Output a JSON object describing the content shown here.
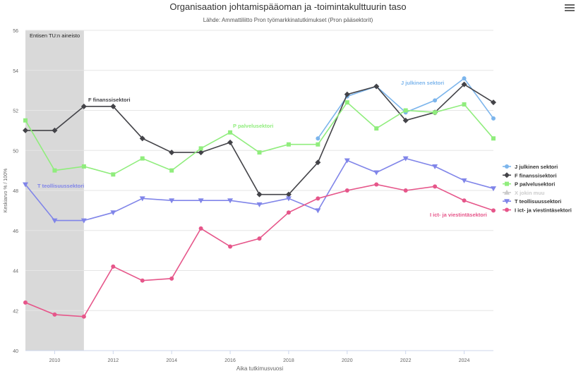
{
  "chart_data": {
    "type": "line",
    "title": "Organisaation johtamispääoman ja -toimintakulttuurin taso",
    "subtitle": "Lähde: Ammattiliitto Pron työmarkkinatutkimukset (Pron pääsektorit)",
    "xlabel": "Aika tutkimusvuosi",
    "ylabel": "Keskiarvo % / 100%",
    "xlim": [
      2009,
      2025
    ],
    "ylim": [
      40,
      56
    ],
    "x_ticks": [
      2010,
      2012,
      2014,
      2016,
      2018,
      2020,
      2022,
      2024
    ],
    "y_ticks": [
      40,
      42,
      44,
      46,
      48,
      50,
      52,
      54,
      56
    ],
    "grid": true,
    "legend_position": "right",
    "band": {
      "from": 2009,
      "to": 2011,
      "label": "Entisen TU:n aineisto"
    },
    "series": [
      {
        "name": "J julkinen sektori",
        "color": "#7cb5ec",
        "marker": "circle",
        "points": [
          [
            2019,
            50.6
          ],
          [
            2020,
            52.7
          ],
          [
            2021,
            53.2
          ],
          [
            2022,
            51.9
          ],
          [
            2023,
            52.5
          ],
          [
            2024,
            53.6
          ],
          [
            2025,
            51.6
          ]
        ],
        "label": "J julkinen sektori"
      },
      {
        "name": "F finanssisektori",
        "color": "#434348",
        "marker": "diamond",
        "points": [
          [
            2009,
            51.0
          ],
          [
            2010,
            51.0
          ],
          [
            2011,
            52.2
          ],
          [
            2012,
            52.2
          ],
          [
            2013,
            50.6
          ],
          [
            2014,
            49.9
          ],
          [
            2015,
            49.9
          ],
          [
            2016,
            50.4
          ],
          [
            2017,
            47.8
          ],
          [
            2018,
            47.8
          ],
          [
            2019,
            49.4
          ],
          [
            2020,
            52.8
          ],
          [
            2021,
            53.2
          ],
          [
            2022,
            51.5
          ],
          [
            2023,
            51.9
          ],
          [
            2024,
            53.3
          ],
          [
            2025,
            52.4
          ]
        ],
        "label": "F finanssisektori"
      },
      {
        "name": "P palvelusektori",
        "color": "#90ed7d",
        "marker": "square",
        "points": [
          [
            2009,
            51.5
          ],
          [
            2010,
            49.0
          ],
          [
            2011,
            49.2
          ],
          [
            2012,
            48.8
          ],
          [
            2013,
            49.6
          ],
          [
            2014,
            49.0
          ],
          [
            2015,
            50.1
          ],
          [
            2016,
            50.9
          ],
          [
            2017,
            49.9
          ],
          [
            2018,
            50.3
          ],
          [
            2019,
            50.3
          ],
          [
            2020,
            52.4
          ],
          [
            2021,
            51.1
          ],
          [
            2022,
            52.0
          ],
          [
            2023,
            51.9
          ],
          [
            2024,
            52.3
          ],
          [
            2025,
            50.6
          ]
        ],
        "label": "P palvelusektori"
      },
      {
        "name": "X jokin muu",
        "color": "#c8c3e6",
        "marker": "triangle",
        "hidden": true,
        "points": []
      },
      {
        "name": "T teollisuussektori",
        "color": "#8085e9",
        "marker": "triangle-down",
        "points": [
          [
            2009,
            48.3
          ],
          [
            2010,
            46.5
          ],
          [
            2011,
            46.5
          ],
          [
            2012,
            46.9
          ],
          [
            2013,
            47.6
          ],
          [
            2014,
            47.5
          ],
          [
            2015,
            47.5
          ],
          [
            2016,
            47.5
          ],
          [
            2017,
            47.3
          ],
          [
            2018,
            47.6
          ],
          [
            2019,
            47.0
          ],
          [
            2020,
            49.5
          ],
          [
            2021,
            48.9
          ],
          [
            2022,
            49.6
          ],
          [
            2023,
            49.2
          ],
          [
            2024,
            48.5
          ],
          [
            2025,
            48.1
          ]
        ],
        "label": "T teollisuussektori"
      },
      {
        "name": "I ict- ja viestintäsektori",
        "color": "#e6568a",
        "marker": "circle",
        "points": [
          [
            2009,
            42.4
          ],
          [
            2010,
            41.8
          ],
          [
            2011,
            41.7
          ],
          [
            2012,
            44.2
          ],
          [
            2013,
            43.5
          ],
          [
            2014,
            43.6
          ],
          [
            2015,
            46.1
          ],
          [
            2016,
            45.2
          ],
          [
            2017,
            45.6
          ],
          [
            2018,
            46.9
          ],
          [
            2019,
            47.6
          ],
          [
            2020,
            48.0
          ],
          [
            2021,
            48.3
          ],
          [
            2022,
            48.0
          ],
          [
            2023,
            48.2
          ],
          [
            2024,
            47.5
          ],
          [
            2025,
            47.0
          ]
        ],
        "label": "I ict- ja viestintäsektori"
      }
    ]
  }
}
